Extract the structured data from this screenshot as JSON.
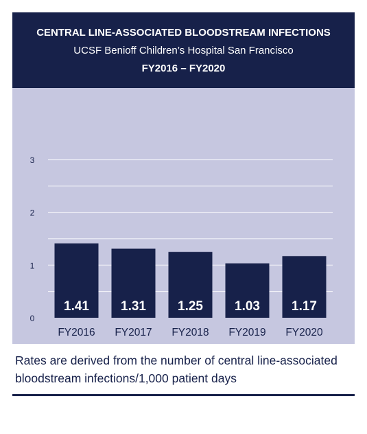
{
  "header": {
    "title": "CENTRAL LINE-ASSOCIATED BLOODSTREAM INFECTIONS",
    "subtitle": "UCSF Benioff Children’s Hospital San Francisco",
    "period": "FY2016 – FY2020"
  },
  "footnote": "Rates are derived from the number of central line-associated bloodstream infections/1,000 patient days",
  "colors": {
    "header_bg": "#17214a",
    "plot_bg": "#c6c7e0",
    "bar": "#17214a",
    "grid": "#ffffff"
  },
  "chart_data": {
    "type": "bar",
    "categories": [
      "FY2016",
      "FY2017",
      "FY2018",
      "FY2019",
      "FY2020"
    ],
    "values": [
      1.41,
      1.31,
      1.25,
      1.03,
      1.17
    ],
    "data_labels": [
      "1.41",
      "1.31",
      "1.25",
      "1.03",
      "1.17"
    ],
    "yticks": [
      0,
      1,
      2,
      3
    ],
    "ylim": [
      0,
      3
    ],
    "grid": true,
    "gridlines": [
      0.5,
      1,
      1.5,
      2,
      2.5,
      3
    ]
  }
}
